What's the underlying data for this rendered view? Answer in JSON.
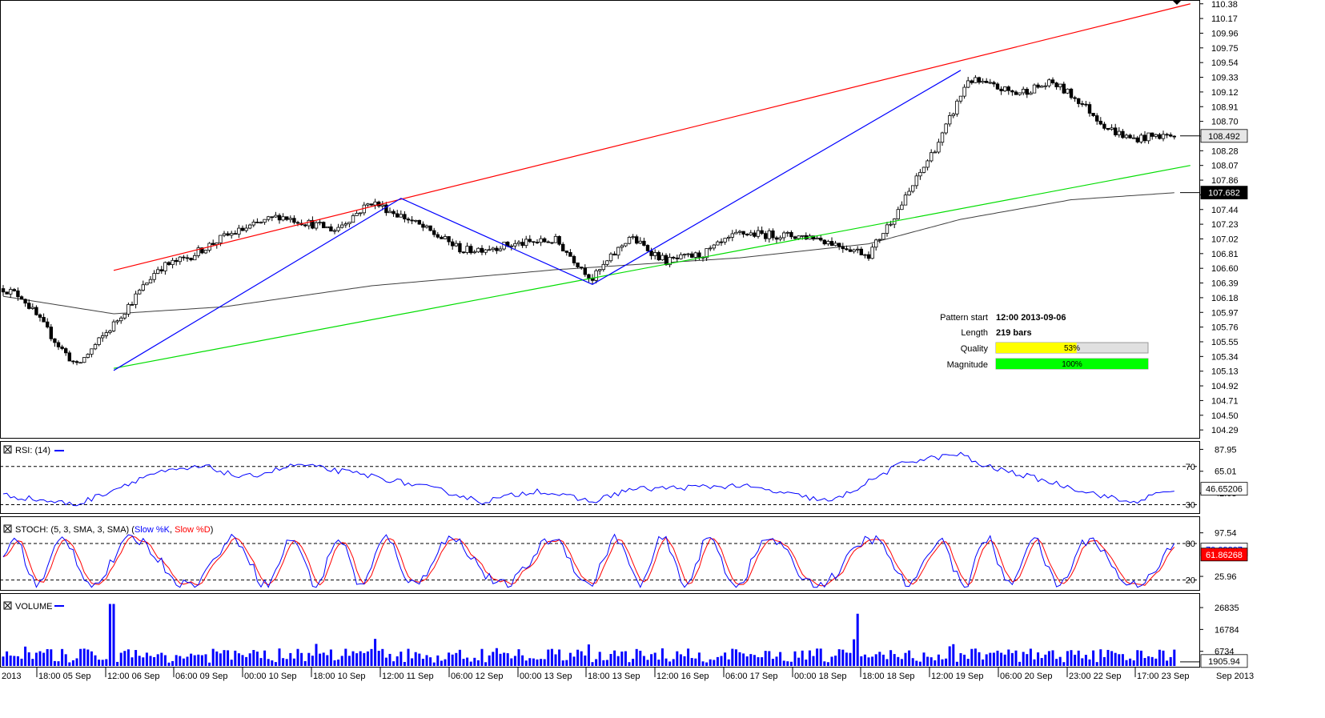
{
  "chart_data": [
    {
      "type": "candlestick",
      "panel": "price",
      "ylim": [
        104.2,
        110.4
      ],
      "y_ticks": [
        "110.38",
        "110.17",
        "109.96",
        "109.75",
        "109.54",
        "109.33",
        "109.12",
        "108.91",
        "108.70",
        "108.49",
        "108.28",
        "108.07",
        "107.86",
        "107.65",
        "107.44",
        "107.23",
        "107.02",
        "106.81",
        "106.60",
        "106.39",
        "106.18",
        "105.97",
        "105.76",
        "105.55",
        "105.34",
        "105.13",
        "104.92",
        "104.71",
        "104.50",
        "104.29"
      ],
      "last_price_label": "108.492",
      "ma_price_label": "107.682",
      "anchors": [
        [
          0,
          106.31
        ],
        [
          5,
          106.2
        ],
        [
          15,
          105.5
        ],
        [
          20,
          105.2
        ],
        [
          30,
          105.8
        ],
        [
          42,
          106.6
        ],
        [
          50,
          106.75
        ],
        [
          60,
          107.05
        ],
        [
          75,
          107.35
        ],
        [
          90,
          107.15
        ],
        [
          100,
          107.55
        ],
        [
          110,
          107.3
        ],
        [
          125,
          106.85
        ],
        [
          140,
          106.95
        ],
        [
          150,
          107.0
        ],
        [
          160,
          106.45
        ],
        [
          170,
          107.05
        ],
        [
          180,
          106.7
        ],
        [
          190,
          106.8
        ],
        [
          200,
          107.1
        ],
        [
          220,
          107.05
        ],
        [
          235,
          106.8
        ],
        [
          245,
          107.6
        ],
        [
          255,
          108.5
        ],
        [
          262,
          109.3
        ],
        [
          275,
          109.1
        ],
        [
          285,
          109.25
        ],
        [
          292,
          109.0
        ],
        [
          300,
          108.6
        ],
        [
          306,
          108.45
        ],
        [
          315,
          108.5
        ],
        [
          318,
          108.49
        ]
      ],
      "ma_anchors": [
        [
          0,
          106.2
        ],
        [
          30,
          105.95
        ],
        [
          60,
          106.05
        ],
        [
          100,
          106.35
        ],
        [
          150,
          106.58
        ],
        [
          200,
          106.75
        ],
        [
          235,
          106.95
        ],
        [
          260,
          107.3
        ],
        [
          290,
          107.58
        ],
        [
          318,
          107.68
        ]
      ],
      "pattern": {
        "resistance": [
          [
            30,
            106.57
          ],
          [
            318,
            110.38
          ]
        ],
        "support": [
          [
            30,
            105.17
          ],
          [
            318,
            108.07
          ]
        ],
        "zigzag": [
          [
            30,
            105.14
          ],
          [
            108,
            107.6
          ],
          [
            160,
            106.37
          ],
          [
            260,
            109.43
          ]
        ]
      },
      "info": {
        "pattern_start_label": "Pattern start",
        "pattern_start": "12:00 2013-09-06",
        "length_label": "Length",
        "length": "219 bars",
        "quality_label": "Quality",
        "quality": "53%",
        "quality_value": 0.53,
        "magnitude_label": "Magnitude",
        "magnitude": "100%",
        "magnitude_value": 1.0
      }
    },
    {
      "type": "line",
      "panel": "rsi",
      "title": "RSI: (14)",
      "ylim": [
        22,
        95
      ],
      "y_ticks": [
        "87.95",
        "65.01",
        "42.08"
      ],
      "levels": [
        [
          "70",
          70
        ],
        [
          "30",
          30
        ]
      ],
      "last_label": "46.65206",
      "anchors": [
        [
          0,
          40
        ],
        [
          20,
          30
        ],
        [
          25,
          38
        ],
        [
          40,
          62
        ],
        [
          55,
          70
        ],
        [
          65,
          58
        ],
        [
          80,
          72
        ],
        [
          100,
          60
        ],
        [
          120,
          44
        ],
        [
          130,
          33
        ],
        [
          145,
          45
        ],
        [
          160,
          33
        ],
        [
          170,
          46
        ],
        [
          200,
          50
        ],
        [
          225,
          33
        ],
        [
          245,
          75
        ],
        [
          260,
          83
        ],
        [
          265,
          72
        ],
        [
          280,
          58
        ],
        [
          300,
          38
        ],
        [
          306,
          32
        ],
        [
          318,
          46
        ]
      ]
    },
    {
      "type": "line",
      "panel": "stoch",
      "title": "STOCH: (5, 3, SMA, 3, SMA)",
      "series": [
        {
          "name": "Slow %K",
          "color": "#0000ff"
        },
        {
          "name": "Slow %D",
          "color": "#ff0000"
        }
      ],
      "ylim": [
        5,
        105
      ],
      "y_ticks": [
        "97.54",
        "25.96"
      ],
      "levels": [
        [
          "80",
          80
        ],
        [
          "20",
          20
        ]
      ],
      "last_k_label": "70.09807",
      "last_d_label": "61.86268"
    },
    {
      "type": "bar",
      "panel": "volume",
      "title": "VOLUME",
      "ylim": [
        0,
        32000
      ],
      "y_ticks": [
        "26835",
        "16784",
        "6734"
      ],
      "last_label": "1905.94"
    }
  ],
  "x_axis_labels": [
    "2013",
    "18:00 05 Sep",
    "12:00 06 Sep",
    "06:00 09 Sep",
    "00:00 10 Sep",
    "18:00 10 Sep",
    "12:00 11 Sep",
    "06:00 12 Sep",
    "00:00 13 Sep",
    "18:00 13 Sep",
    "12:00 16 Sep",
    "06:00 17 Sep",
    "00:00 18 Sep",
    "18:00 18 Sep",
    "12:00 19 Sep",
    "06:00 20 Sep",
    "23:00 22 Sep",
    "17:00 23 Sep",
    "Sep 2013"
  ],
  "colors": {
    "bull": "#ffffff",
    "bear": "#000000",
    "resistance": "#ff0000",
    "support": "#00dd00",
    "zigzag": "#0000ff",
    "ma": "#404040",
    "rsi": "#0000ff",
    "volume": "#0000ff",
    "quality_fill": "#ffff00",
    "magnitude_fill": "#00ff00",
    "d_label_bg": "#ff0000"
  }
}
